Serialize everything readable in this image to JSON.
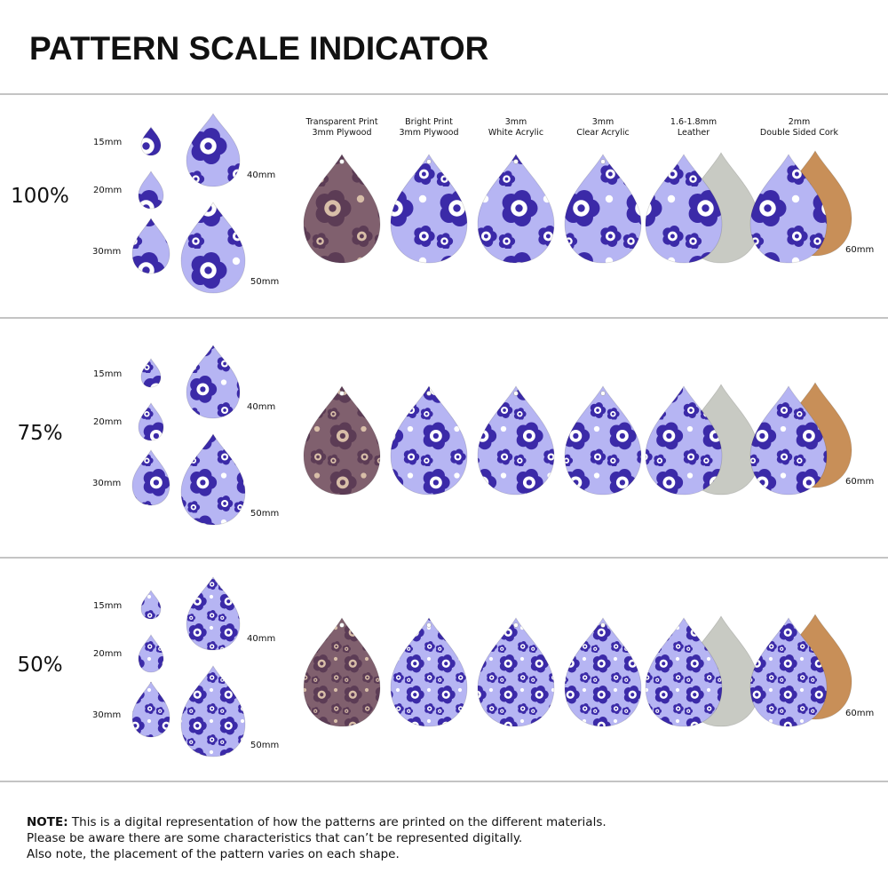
{
  "header": {
    "title": "PATTERN SCALE INDICATOR"
  },
  "materials": [
    {
      "lines": [
        "Transparent Print",
        "3mm Plywood"
      ]
    },
    {
      "lines": [
        "Bright Print",
        "3mm Plywood"
      ]
    },
    {
      "lines": [
        "3mm",
        "White Acrylic"
      ]
    },
    {
      "lines": [
        "3mm",
        "Clear Acrylic"
      ]
    },
    {
      "lines": [
        "1.6-1.8mm",
        "Leather"
      ]
    },
    {
      "lines": [
        "2mm",
        "Double Sided Cork"
      ]
    }
  ],
  "rows": [
    {
      "scale": "100%",
      "sizes": [
        "15mm",
        "20mm",
        "30mm",
        "40mm",
        "50mm"
      ],
      "large_size": "60mm"
    },
    {
      "scale": "75%",
      "sizes": [
        "15mm",
        "20mm",
        "30mm",
        "40mm",
        "50mm"
      ],
      "large_size": "60mm"
    },
    {
      "scale": "50%",
      "sizes": [
        "15mm",
        "20mm",
        "30mm",
        "40mm",
        "50mm"
      ],
      "large_size": "60mm"
    }
  ],
  "note": {
    "label": "NOTE:",
    "lines": [
      "This is a digital representation of how the patterns are printed on the different materials.",
      "Please be aware there are some characteristics that can’t be represented digitally.",
      "Also note, the placement of the pattern varies on each shape."
    ]
  }
}
